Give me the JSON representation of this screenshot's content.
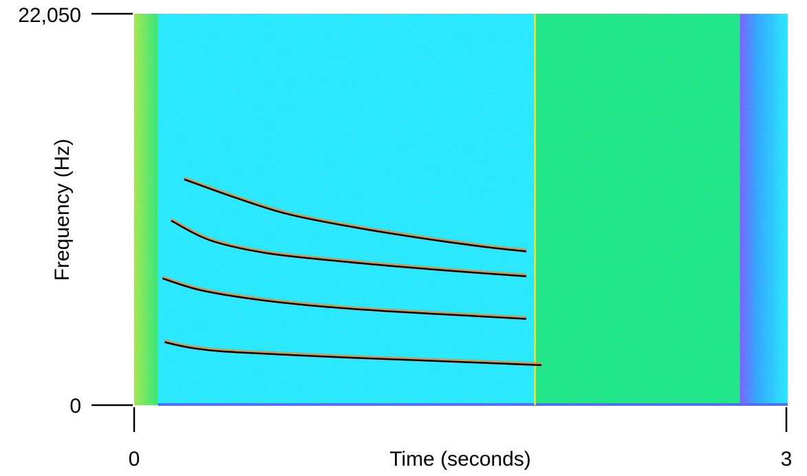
{
  "chart_data": {
    "type": "heatmap",
    "subtype": "spectrogram",
    "title": "",
    "xlabel": "Time (seconds)",
    "ylabel": "Frequency (Hz)",
    "xlim": [
      0,
      3
    ],
    "ylim": [
      0,
      22050
    ],
    "x_ticks": [
      {
        "value": 0,
        "label": "0"
      },
      {
        "value": 3,
        "label": "3"
      }
    ],
    "y_ticks": [
      {
        "value": 0,
        "label": "0"
      },
      {
        "value": 22050,
        "label": "22,050"
      }
    ],
    "grid": false,
    "legend": "none",
    "colors": {
      "low": "#3a6df0",
      "mid_low": "#1ff2ff",
      "mid": "#14f07a",
      "high": "#d8f23a",
      "peak": "#ff55ff",
      "marker": "#f2e030",
      "fit_line": "#000000",
      "trace": "#f08a30"
    },
    "marker_line": {
      "x": 1.84
    },
    "regions": [
      {
        "x_range": [
          0,
          0.11
        ],
        "level": "high"
      },
      {
        "x_range": [
          0.11,
          1.84
        ],
        "level": "mid_low"
      },
      {
        "x_range": [
          1.84,
          2.78
        ],
        "level": "mid"
      },
      {
        "x_range": [
          2.78,
          3.0
        ],
        "level": "mid_low"
      }
    ],
    "series": [
      {
        "x": [
          0.23,
          0.45,
          0.7,
          1.0,
          1.3,
          1.6,
          1.8
        ],
        "y": [
          12720,
          11750,
          10780,
          10040,
          9440,
          8930,
          8660
        ]
      },
      {
        "x": [
          0.17,
          0.35,
          0.6,
          0.9,
          1.2,
          1.5,
          1.8
        ],
        "y": [
          10390,
          9280,
          8580,
          8160,
          7820,
          7520,
          7260
        ]
      },
      {
        "x": [
          0.13,
          0.3,
          0.55,
          0.85,
          1.15,
          1.5,
          1.8
        ],
        "y": [
          7140,
          6490,
          5970,
          5570,
          5300,
          5060,
          4860
        ]
      },
      {
        "x": [
          0.14,
          0.25,
          0.4,
          0.7,
          1.0,
          1.4,
          1.87
        ],
        "y": [
          3550,
          3250,
          3030,
          2840,
          2670,
          2480,
          2250
        ]
      }
    ]
  }
}
